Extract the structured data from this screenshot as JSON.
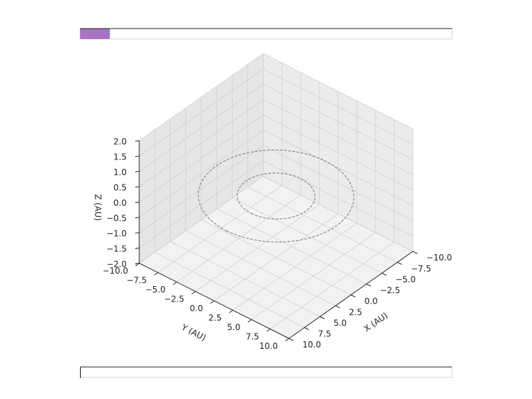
{
  "chart_data": {
    "type": "orbit3d",
    "xlabel": "X (AU)",
    "ylabel": "Y (AU)",
    "zlabel": "Z (AU)",
    "xlim": [
      -10,
      10
    ],
    "ylim": [
      -10,
      10
    ],
    "zlim": [
      -2,
      2
    ],
    "xticks": [
      {
        "value": -10,
        "label": "−10.0"
      },
      {
        "value": -7.5,
        "label": "−7.5"
      },
      {
        "value": -5,
        "label": "−5.0"
      },
      {
        "value": -2.5,
        "label": "−2.5"
      },
      {
        "value": 0,
        "label": "0.0"
      },
      {
        "value": 2.5,
        "label": "2.5"
      },
      {
        "value": 5,
        "label": "5.0"
      },
      {
        "value": 7.5,
        "label": "7.5"
      },
      {
        "value": 10,
        "label": "10.0"
      }
    ],
    "yticks": [
      {
        "value": -10,
        "label": "−10.0"
      },
      {
        "value": -7.5,
        "label": "−7.5"
      },
      {
        "value": -5,
        "label": "−5.0"
      },
      {
        "value": -2.5,
        "label": "−2.5"
      },
      {
        "value": 0,
        "label": "0.0"
      },
      {
        "value": 2.5,
        "label": "2.5"
      },
      {
        "value": 5,
        "label": "5.0"
      },
      {
        "value": 7.5,
        "label": "7.5"
      },
      {
        "value": 10,
        "label": "10.0"
      }
    ],
    "zticks": [
      {
        "value": -2,
        "label": "−2.0"
      },
      {
        "value": -1.5,
        "label": "−1.5"
      },
      {
        "value": -1,
        "label": "−1.0"
      },
      {
        "value": -0.5,
        "label": "−0.5"
      },
      {
        "value": 0,
        "label": "0.0"
      },
      {
        "value": 0.5,
        "label": "0.5"
      },
      {
        "value": 1,
        "label": "1.0"
      },
      {
        "value": 1.5,
        "label": "1.5"
      },
      {
        "value": 2,
        "label": "2.0"
      }
    ],
    "grid": true,
    "series": [
      {
        "radius": 4,
        "color": "#808080"
      },
      {
        "radius": 8,
        "color": "#808080"
      }
    ]
  },
  "sliders": [
    {
      "fraction": 0.08,
      "color": "#a873c4"
    },
    {
      "fraction": 0,
      "color": "#a873c4"
    }
  ]
}
